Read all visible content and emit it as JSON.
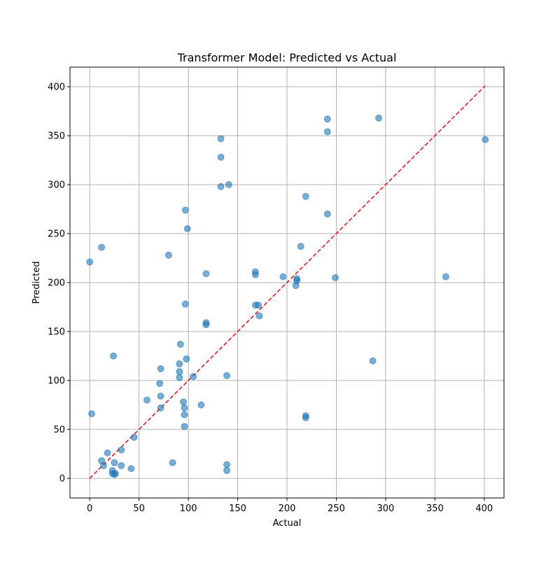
{
  "chart_data": {
    "type": "scatter",
    "title": "Transformer Model: Predicted vs Actual",
    "xlabel": "Actual",
    "ylabel": "Predicted",
    "xlim": [
      -20,
      420
    ],
    "ylim": [
      -20,
      420
    ],
    "xticks": [
      0,
      50,
      100,
      150,
      200,
      250,
      300,
      350,
      400
    ],
    "yticks": [
      0,
      50,
      100,
      150,
      200,
      250,
      300,
      350,
      400
    ],
    "grid": true,
    "point_color": "#1f77b4",
    "point_opacity": 0.6,
    "reference_line": {
      "x": [
        0,
        401
      ],
      "y": [
        0,
        401
      ],
      "color": "#e41a1c",
      "style": "dashed"
    },
    "points": [
      {
        "x": 0,
        "y": 221
      },
      {
        "x": 2,
        "y": 66
      },
      {
        "x": 12,
        "y": 236
      },
      {
        "x": 12,
        "y": 18
      },
      {
        "x": 14,
        "y": 13
      },
      {
        "x": 18,
        "y": 26
      },
      {
        "x": 23,
        "y": 8
      },
      {
        "x": 23,
        "y": 5
      },
      {
        "x": 24,
        "y": 125
      },
      {
        "x": 25,
        "y": 16
      },
      {
        "x": 25,
        "y": 4
      },
      {
        "x": 26,
        "y": 5
      },
      {
        "x": 32,
        "y": 29
      },
      {
        "x": 32,
        "y": 13
      },
      {
        "x": 42,
        "y": 10
      },
      {
        "x": 45,
        "y": 42
      },
      {
        "x": 58,
        "y": 80
      },
      {
        "x": 71,
        "y": 97
      },
      {
        "x": 72,
        "y": 112
      },
      {
        "x": 72,
        "y": 84
      },
      {
        "x": 72,
        "y": 72
      },
      {
        "x": 80,
        "y": 228
      },
      {
        "x": 84,
        "y": 16
      },
      {
        "x": 91,
        "y": 117
      },
      {
        "x": 91,
        "y": 109
      },
      {
        "x": 91,
        "y": 103
      },
      {
        "x": 92,
        "y": 137
      },
      {
        "x": 95,
        "y": 78
      },
      {
        "x": 96,
        "y": 72
      },
      {
        "x": 96,
        "y": 65
      },
      {
        "x": 96,
        "y": 53
      },
      {
        "x": 97,
        "y": 274
      },
      {
        "x": 97,
        "y": 178
      },
      {
        "x": 98,
        "y": 122
      },
      {
        "x": 99,
        "y": 255
      },
      {
        "x": 105,
        "y": 104
      },
      {
        "x": 113,
        "y": 75
      },
      {
        "x": 118,
        "y": 209
      },
      {
        "x": 118,
        "y": 159
      },
      {
        "x": 118,
        "y": 157
      },
      {
        "x": 133,
        "y": 347
      },
      {
        "x": 133,
        "y": 328
      },
      {
        "x": 133,
        "y": 298
      },
      {
        "x": 139,
        "y": 105
      },
      {
        "x": 139,
        "y": 14
      },
      {
        "x": 139,
        "y": 8
      },
      {
        "x": 141,
        "y": 300
      },
      {
        "x": 168,
        "y": 211
      },
      {
        "x": 168,
        "y": 208
      },
      {
        "x": 168,
        "y": 177
      },
      {
        "x": 171,
        "y": 177
      },
      {
        "x": 172,
        "y": 166
      },
      {
        "x": 196,
        "y": 206
      },
      {
        "x": 209,
        "y": 197
      },
      {
        "x": 210,
        "y": 204
      },
      {
        "x": 210,
        "y": 202
      },
      {
        "x": 214,
        "y": 237
      },
      {
        "x": 219,
        "y": 288
      },
      {
        "x": 219,
        "y": 64
      },
      {
        "x": 219,
        "y": 62
      },
      {
        "x": 241,
        "y": 367
      },
      {
        "x": 241,
        "y": 354
      },
      {
        "x": 241,
        "y": 270
      },
      {
        "x": 249,
        "y": 205
      },
      {
        "x": 287,
        "y": 120
      },
      {
        "x": 293,
        "y": 368
      },
      {
        "x": 361,
        "y": 206
      },
      {
        "x": 401,
        "y": 346
      }
    ]
  }
}
